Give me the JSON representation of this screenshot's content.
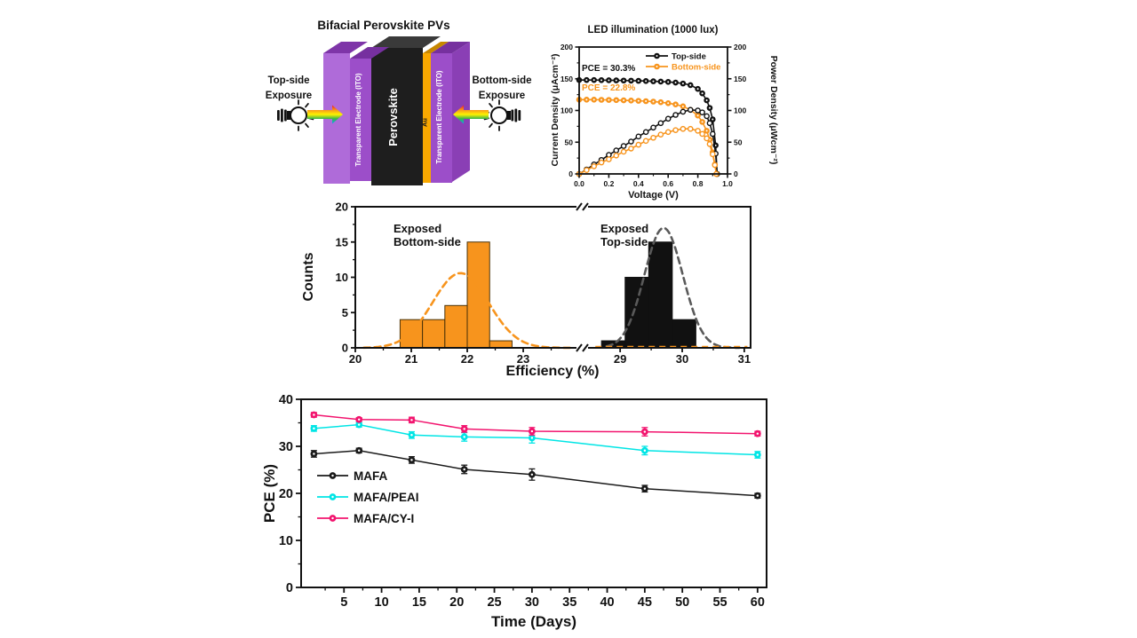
{
  "figure": {
    "background": "#ffffff"
  },
  "diagram": {
    "title": "Bifacial Perovskite PVs",
    "left_exposure": {
      "line1": "Top-side",
      "line2": "Exposure"
    },
    "right_exposure": {
      "line1": "Bottom-side",
      "line2": "Exposure"
    },
    "layers": [
      {
        "id": "ito-left-slab",
        "label": "",
        "color": "#AF6BD9",
        "top_color": "#7E35A8",
        "text_color": "#ffffff"
      },
      {
        "id": "ito-left",
        "label": "Transparent Electrode (ITO)",
        "color": "#9C4EC9",
        "top_color": "#76309F",
        "text_color": "#ffffff"
      },
      {
        "id": "perovskite",
        "label": "Perovskite",
        "color": "#1E1E1E",
        "top_color": "#3A3A3A",
        "text_color": "#ffffff"
      },
      {
        "id": "au",
        "label": "Au",
        "color": "#F9A800",
        "top_color": "#C68600",
        "text_color": "#1a1a1a"
      },
      {
        "id": "ito-right",
        "label": "Transparent Electrode (ITO)",
        "color": "#9C4EC9",
        "top_color": "#76309F",
        "text_color": "#ffffff"
      },
      {
        "id": "ito-right-side",
        "label": "",
        "color": "#8A3FB5",
        "top_color": "#8A3FB5",
        "text_color": "#ffffff"
      }
    ],
    "arrow_colors": [
      "#ED1C24",
      "#F7941D",
      "#FFF200",
      "#39B54A",
      "#00AEEF"
    ]
  },
  "chart_data": [
    {
      "id": "jv",
      "type": "line",
      "title": "LED illumination (1000 lux)",
      "xlabel": "Voltage (V)",
      "ylabel_left": "Current Density (μAcm⁻²)",
      "ylabel_right": "Power Density (μWcm⁻²)",
      "xlim": [
        0,
        1
      ],
      "ylim": [
        0,
        200
      ],
      "xticks": {
        "values": [
          0,
          0.2,
          0.4,
          0.6,
          0.8,
          1.0
        ],
        "labels": [
          "0.0",
          "0.2",
          "0.4",
          "0.6",
          "0.8",
          "1.0"
        ],
        "minor": [
          0.1,
          0.3,
          0.5,
          0.7,
          0.9
        ]
      },
      "yticks": {
        "values": [
          0,
          50,
          100,
          150,
          200
        ],
        "labels": [
          "0",
          "50",
          "100",
          "150",
          "200"
        ],
        "minor": [
          25,
          75,
          125,
          175
        ]
      },
      "annotations": [
        {
          "text": "PCE = 30.3%",
          "color": "#111111"
        },
        {
          "text": "PCE = 22.8%",
          "color": "#F7941D"
        }
      ],
      "legend": [
        {
          "label": "Top-side",
          "color": "#111111"
        },
        {
          "label": "Bottom-side",
          "color": "#F7941D"
        }
      ],
      "series": [
        {
          "name": "top-side-current",
          "color": "#111111",
          "marker": "filled",
          "points": [
            [
              0,
              148
            ],
            [
              0.05,
              148
            ],
            [
              0.1,
              148
            ],
            [
              0.15,
              147.8
            ],
            [
              0.2,
              147.6
            ],
            [
              0.25,
              147.4
            ],
            [
              0.3,
              147.2
            ],
            [
              0.35,
              147
            ],
            [
              0.4,
              146.7
            ],
            [
              0.45,
              146.4
            ],
            [
              0.5,
              146
            ],
            [
              0.55,
              145.5
            ],
            [
              0.6,
              145
            ],
            [
              0.65,
              144
            ],
            [
              0.7,
              142.5
            ],
            [
              0.75,
              140
            ],
            [
              0.8,
              134
            ],
            [
              0.83,
              127
            ],
            [
              0.86,
              116
            ],
            [
              0.88,
              104
            ],
            [
              0.9,
              86
            ],
            [
              0.92,
              45
            ],
            [
              0.93,
              0
            ]
          ]
        },
        {
          "name": "bottom-side-current",
          "color": "#F7941D",
          "marker": "filled",
          "points": [
            [
              0,
              117
            ],
            [
              0.05,
              117
            ],
            [
              0.1,
              117
            ],
            [
              0.15,
              116.8
            ],
            [
              0.2,
              116.6
            ],
            [
              0.25,
              116.3
            ],
            [
              0.3,
              116
            ],
            [
              0.35,
              115.6
            ],
            [
              0.4,
              115.2
            ],
            [
              0.45,
              114.7
            ],
            [
              0.5,
              114
            ],
            [
              0.55,
              113
            ],
            [
              0.6,
              111.5
            ],
            [
              0.65,
              109.5
            ],
            [
              0.7,
              106.5
            ],
            [
              0.75,
              101
            ],
            [
              0.8,
              92
            ],
            [
              0.83,
              82
            ],
            [
              0.86,
              68
            ],
            [
              0.88,
              54
            ],
            [
              0.9,
              34
            ],
            [
              0.915,
              15
            ],
            [
              0.925,
              0
            ]
          ]
        },
        {
          "name": "top-side-power",
          "color": "#111111",
          "marker": "open",
          "points": [
            [
              0,
              0
            ],
            [
              0.05,
              7
            ],
            [
              0.1,
              15
            ],
            [
              0.15,
              22
            ],
            [
              0.2,
              30
            ],
            [
              0.25,
              37
            ],
            [
              0.3,
              44
            ],
            [
              0.35,
              51
            ],
            [
              0.4,
              59
            ],
            [
              0.45,
              66
            ],
            [
              0.5,
              73
            ],
            [
              0.55,
              80
            ],
            [
              0.6,
              87
            ],
            [
              0.65,
              93
            ],
            [
              0.7,
              98
            ],
            [
              0.75,
              101
            ],
            [
              0.8,
              100
            ],
            [
              0.83,
              97
            ],
            [
              0.86,
              91
            ],
            [
              0.88,
              80
            ],
            [
              0.9,
              63
            ],
            [
              0.92,
              32
            ],
            [
              0.93,
              0
            ]
          ]
        },
        {
          "name": "bottom-side-power",
          "color": "#F7941D",
          "marker": "open",
          "points": [
            [
              0,
              0
            ],
            [
              0.05,
              6
            ],
            [
              0.1,
              12
            ],
            [
              0.15,
              18
            ],
            [
              0.2,
              23
            ],
            [
              0.25,
              29
            ],
            [
              0.3,
              35
            ],
            [
              0.35,
              40
            ],
            [
              0.4,
              46
            ],
            [
              0.45,
              52
            ],
            [
              0.5,
              57
            ],
            [
              0.55,
              62
            ],
            [
              0.6,
              66
            ],
            [
              0.65,
              69
            ],
            [
              0.7,
              71
            ],
            [
              0.75,
              71
            ],
            [
              0.8,
              68
            ],
            [
              0.83,
              63
            ],
            [
              0.86,
              56
            ],
            [
              0.88,
              47
            ],
            [
              0.9,
              31
            ],
            [
              0.915,
              14
            ],
            [
              0.925,
              0
            ]
          ]
        }
      ]
    },
    {
      "id": "hist",
      "type": "bar",
      "xlabel": "Efficiency (%)",
      "ylabel": "Counts",
      "ylim": [
        0,
        20
      ],
      "yticks": {
        "values": [
          0,
          5,
          10,
          15,
          20
        ],
        "minor": [
          2.5,
          7.5,
          12.5,
          17.5
        ]
      },
      "break_frac": 0.573,
      "segments": [
        {
          "ref_value": 20,
          "ref_frac": 0,
          "frac_per_unit": 0.1416,
          "ticks": [
            20,
            21,
            22,
            23
          ],
          "minor": [
            20.5,
            21.5,
            22.5,
            23.5
          ]
        },
        {
          "ref_value": 29,
          "ref_frac": 0.67,
          "frac_per_unit": 0.157,
          "ticks": [
            29,
            30,
            31
          ],
          "minor": [
            29.5,
            30.5
          ]
        }
      ],
      "histograms": [
        {
          "name": "bottom-side",
          "label_line1": "Exposed",
          "label_line2": "Bottom-side",
          "color": "#F7941D",
          "edge_color": "#4a3208",
          "segment": 0,
          "bin_edges": [
            20.8,
            21.2,
            21.6,
            22.0,
            22.4,
            22.8
          ],
          "counts": [
            4,
            4,
            6,
            15,
            1
          ],
          "gauss": {
            "center": 21.88,
            "amp": 10.6,
            "sigma": 0.5,
            "range": [
              20.15,
              23.85
            ]
          },
          "gauss_color": "#F7941D"
        },
        {
          "name": "top-side",
          "label_line1": "Exposed",
          "label_line2": "Top-side",
          "color": "#111111",
          "edge_color": "#111111",
          "segment": 1,
          "bin_edges": [
            28.7,
            29.08,
            29.46,
            29.84,
            30.22
          ],
          "counts": [
            1,
            10,
            15,
            4
          ],
          "gauss": {
            "center": 29.7,
            "amp": 17,
            "sigma": 0.31,
            "range": [
              28.78,
              30.92
            ]
          },
          "gauss_color": "#5a5a5a"
        }
      ],
      "baseline_dash": {
        "color": "#F7941D",
        "segment": 1,
        "range": [
          28.6,
          31.05
        ],
        "level": 0.15
      }
    },
    {
      "id": "stability",
      "type": "line",
      "xlabel": "Time (Days)",
      "ylabel": "PCE (%)",
      "xlim": [
        -0.7,
        61.2
      ],
      "ylim": [
        0,
        40
      ],
      "xticks": {
        "values": [
          5,
          10,
          15,
          20,
          25,
          30,
          35,
          40,
          45,
          50,
          55,
          60
        ],
        "minor": [
          2.5,
          7.5,
          12.5,
          17.5,
          22.5,
          27.5,
          32.5,
          37.5,
          42.5,
          47.5,
          52.5,
          57.5
        ]
      },
      "yticks": {
        "values": [
          0,
          10,
          20,
          30,
          40
        ],
        "minor": [
          5,
          15,
          25,
          35
        ]
      },
      "days": [
        1,
        7,
        14,
        21,
        30,
        45,
        60
      ],
      "series": [
        {
          "name": "MAFA",
          "color": "#1a1a1a",
          "values": [
            28.4,
            29.1,
            27.1,
            25.1,
            24.0,
            21.0,
            19.5
          ],
          "err": [
            0.7,
            0.5,
            0.7,
            0.9,
            1.2,
            0.7,
            0.5
          ]
        },
        {
          "name": "MAFA/PEAI",
          "color": "#00E5E5",
          "values": [
            33.8,
            34.6,
            32.4,
            32.0,
            31.8,
            29.1,
            28.2
          ],
          "err": [
            0.6,
            0.5,
            0.7,
            0.9,
            1.1,
            0.9,
            0.7
          ]
        },
        {
          "name": "MAFA/CY-I",
          "color": "#F2146E",
          "values": [
            36.7,
            35.7,
            35.6,
            33.7,
            33.2,
            33.1,
            32.7
          ],
          "err": [
            0.5,
            0.4,
            0.6,
            0.7,
            0.8,
            0.9,
            0.5
          ]
        }
      ]
    }
  ]
}
